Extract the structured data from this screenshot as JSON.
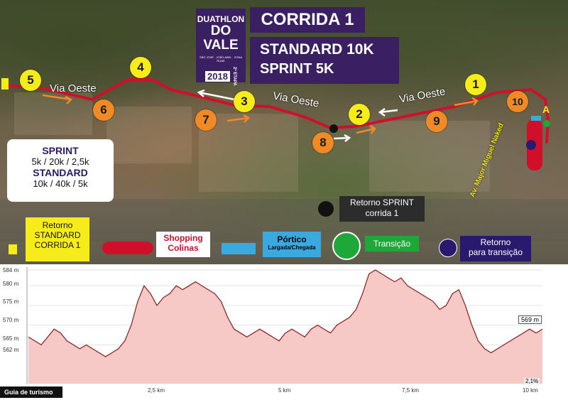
{
  "header": {
    "logo_line1": "DUATHLON",
    "logo_line2": "DO VALE",
    "logo_small": "SÃO JOSÉ · JOÃO ABEL · ZONA RUNE",
    "logo_year": "2018",
    "logo_stage": "2ª ETAPA",
    "title": "CORRIDA 1",
    "subtitle1": "STANDARD 10K",
    "subtitle2": "SPRINT 5K"
  },
  "distances": {
    "sprint_label": "SPRINT",
    "sprint_values": "5k / 20k / 2,5k",
    "standard_label": "STANDARD",
    "standard_values": "10k / 40k / 5k"
  },
  "roads": {
    "via_oeste_1": "Via Oeste",
    "via_oeste_2": "Via Oeste",
    "via_oeste_3": "Via Oeste",
    "av_major": "Av. Major Miguel Naked"
  },
  "markers": [
    {
      "n": "1",
      "color": "yellow"
    },
    {
      "n": "2",
      "color": "yellow"
    },
    {
      "n": "3",
      "color": "yellow"
    },
    {
      "n": "4",
      "color": "yellow"
    },
    {
      "n": "5",
      "color": "yellow"
    },
    {
      "n": "6",
      "color": "orange"
    },
    {
      "n": "7",
      "color": "orange"
    },
    {
      "n": "8",
      "color": "orange"
    },
    {
      "n": "9",
      "color": "orange"
    },
    {
      "n": "10",
      "color": "orange"
    }
  ],
  "legend": {
    "retorno_standard": "Retorno\nSTANDARD\nCORRIDA 1",
    "shopping": "Shopping\nColinas",
    "portico_title": "Pórtico",
    "portico_sub": "Largada/Chegada",
    "transicao": "Transição",
    "retorno_transicao": "Retorno\npara transição",
    "retorno_sprint": "Retorno SPRINT\ncorrida 1"
  },
  "map_letter": "A",
  "colors": {
    "route": "#d0102a",
    "title_bg": "#3a1f63",
    "yellow": "#f5ec1a",
    "orange": "#f08a24",
    "green": "#1fa83a",
    "blue": "#3aa9e0",
    "navy": "#2a1a6e",
    "profile_fill": "#f6c9c7",
    "profile_line": "#8a1a1a"
  },
  "profile": {
    "y_ticks": [
      "584 m",
      "580 m",
      "575 m",
      "570 m",
      "565 m",
      "562 m"
    ],
    "x_ticks": [
      "2,5 km",
      "5 km",
      "7,5 km",
      "10 km"
    ],
    "current_elevation": "569 m",
    "grade": "2,1%",
    "footer": "Guia de turismo",
    "elevations": [
      567,
      566,
      565,
      567,
      569,
      568,
      566,
      565,
      564,
      565,
      564,
      563,
      562,
      563,
      564,
      566,
      570,
      576,
      580,
      578,
      575,
      577,
      578,
      580,
      579,
      580,
      581,
      580,
      579,
      578,
      576,
      572,
      569,
      568,
      567,
      568,
      569,
      568,
      567,
      566,
      568,
      569,
      568,
      567,
      569,
      570,
      569,
      568,
      570,
      571,
      572,
      574,
      578,
      583,
      584,
      583,
      582,
      581,
      582,
      580,
      579,
      578,
      577,
      576,
      574,
      575,
      578,
      579,
      575,
      570,
      566,
      564,
      563,
      564,
      565,
      566,
      567,
      568,
      569,
      568,
      569
    ]
  }
}
